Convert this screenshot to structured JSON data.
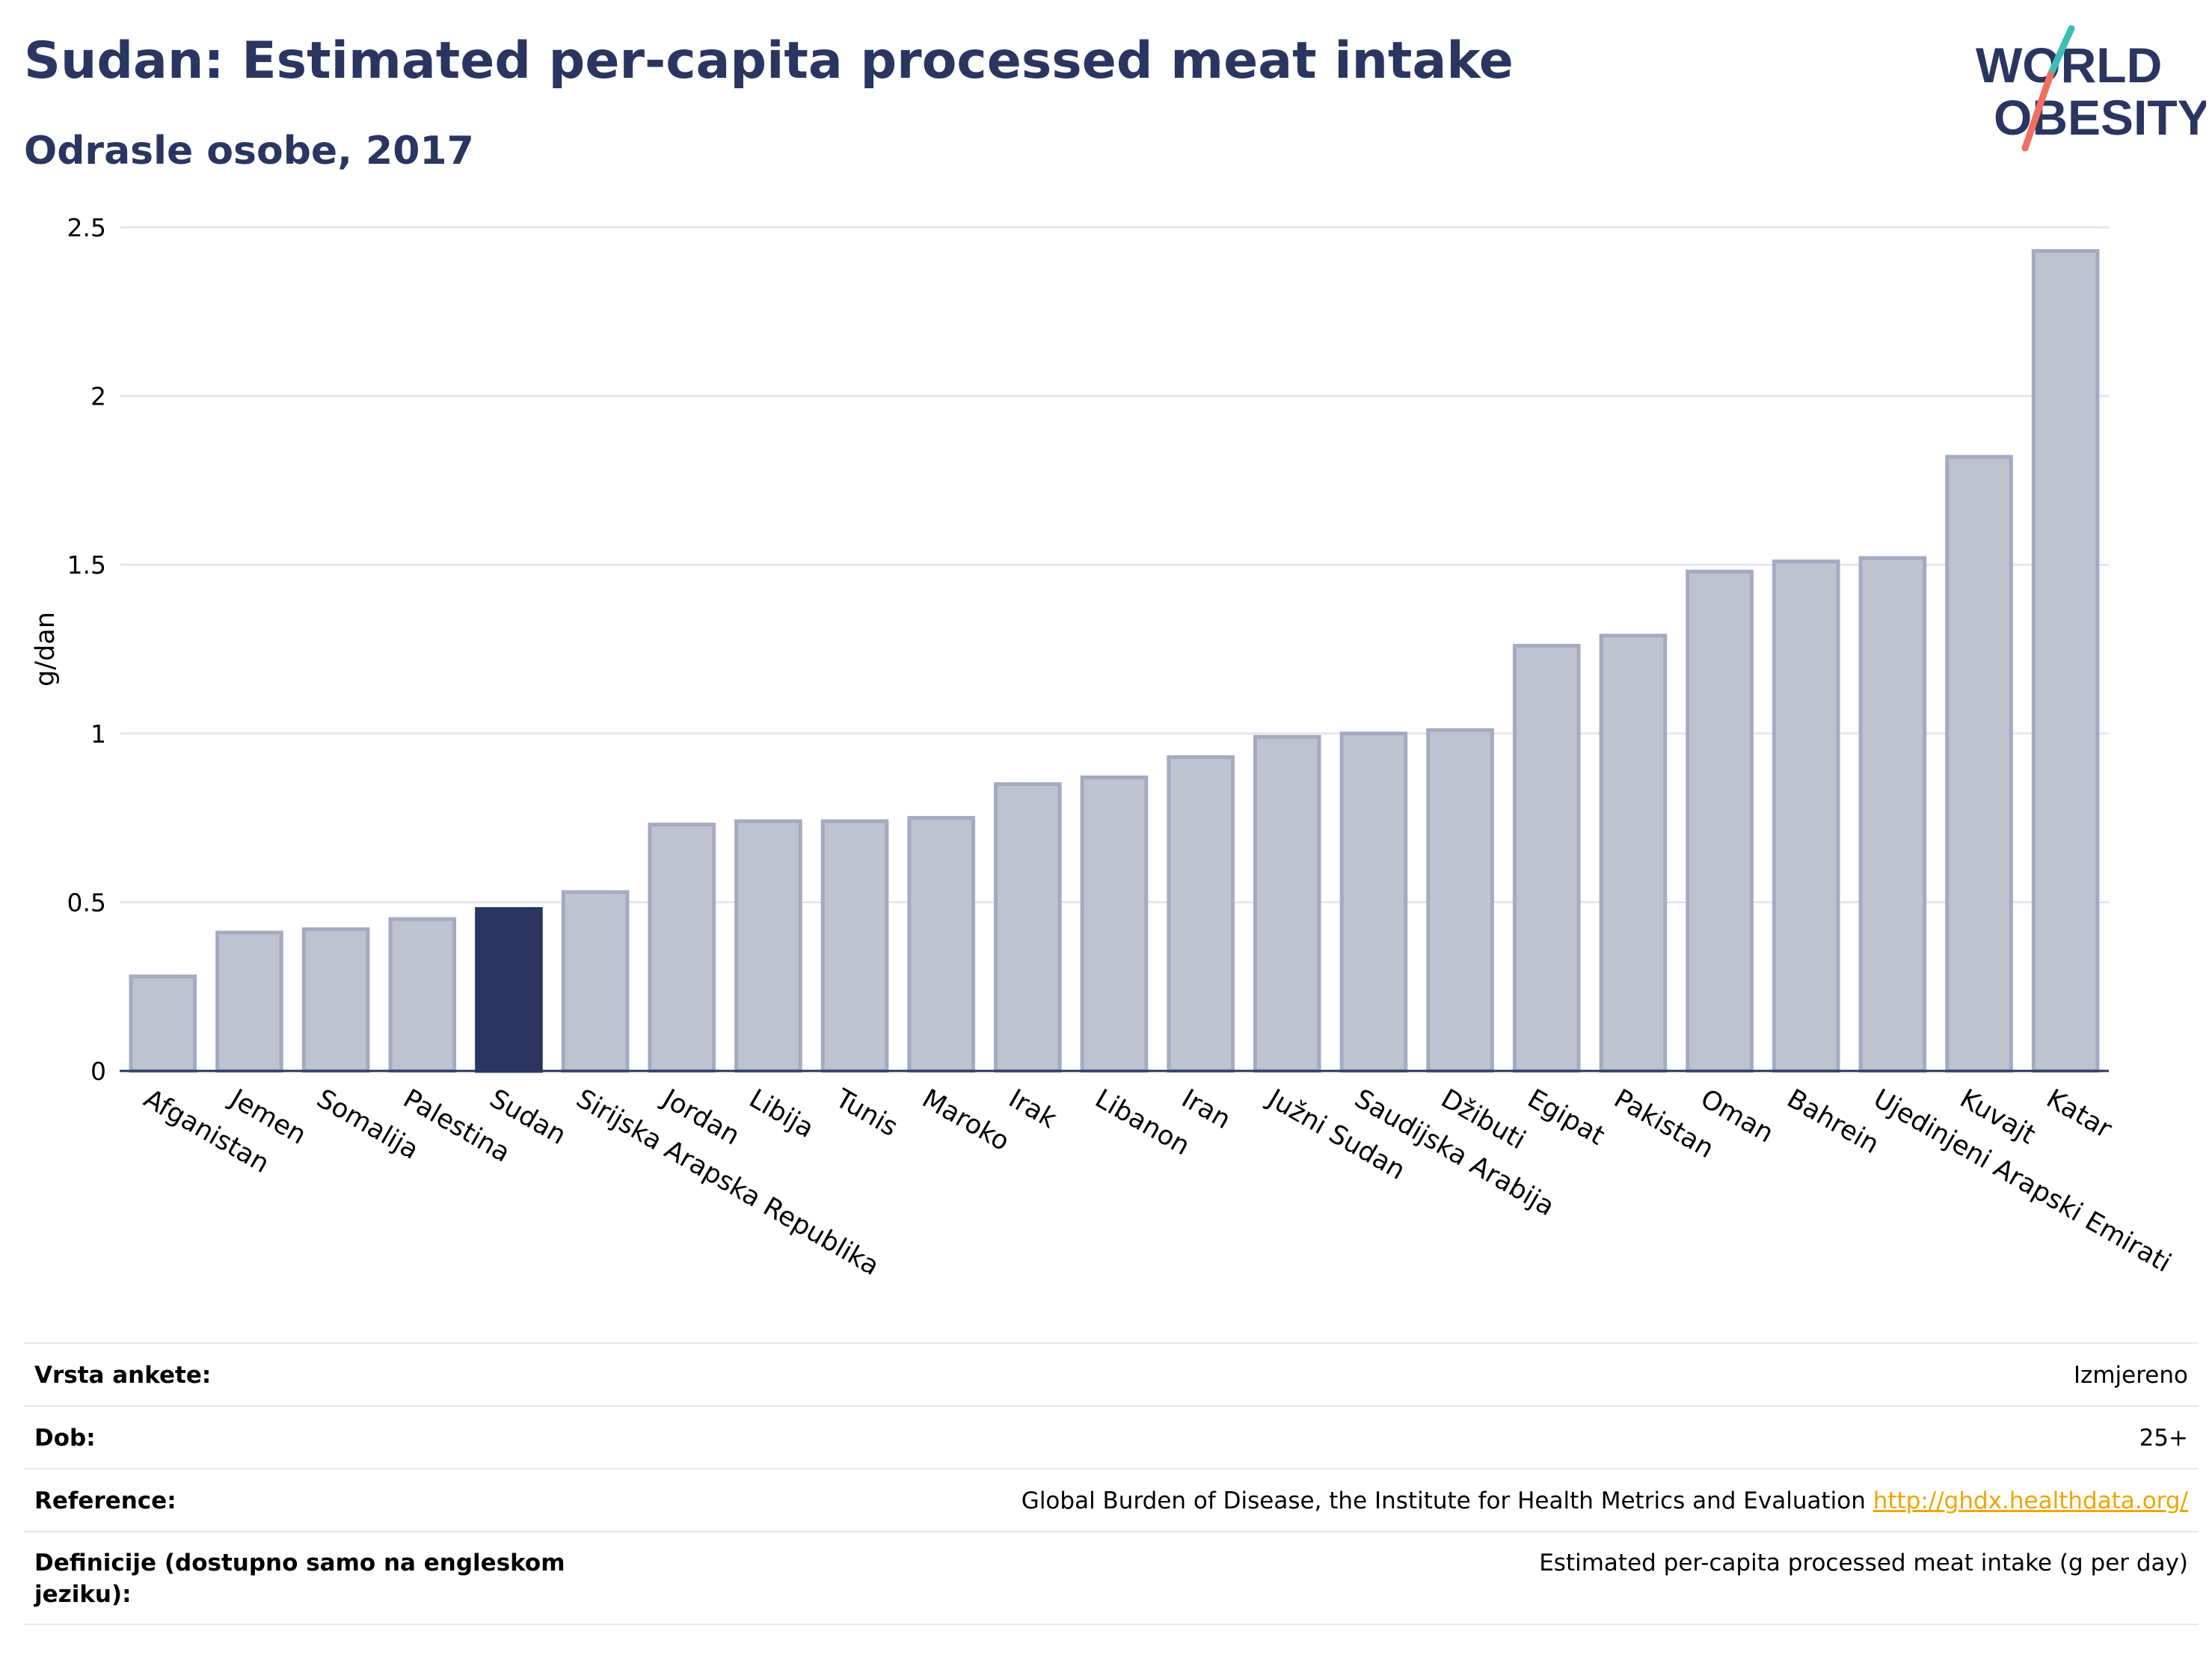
{
  "header": {
    "title": "Sudan: Estimated per-capita processed meat intake",
    "subtitle": "Odrasle osobe, 2017"
  },
  "logo": {
    "line1": "WORLD",
    "line2": "OBESITY"
  },
  "chart_data": {
    "type": "bar",
    "ylabel": "g/dan",
    "ylim": [
      0,
      2.5
    ],
    "yticks": [
      0,
      0.5,
      1,
      1.5,
      2,
      2.5
    ],
    "ytick_labels": [
      "0",
      "0.5",
      "1",
      "1.5",
      "2",
      "2.5"
    ],
    "highlight": "Sudan",
    "categories": [
      "Afganistan",
      "Jemen",
      "Somalija",
      "Palestina",
      "Sudan",
      "Sirijska Arapska Republika",
      "Jordan",
      "Libija",
      "Tunis",
      "Maroko",
      "Irak",
      "Libanon",
      "Iran",
      "Južni Sudan",
      "Saudijska Arabija",
      "Džibuti",
      "Egipat",
      "Pakistan",
      "Oman",
      "Bahrein",
      "Ujedinjeni Arapski Emirati",
      "Kuvajt",
      "Katar"
    ],
    "values": [
      0.28,
      0.41,
      0.42,
      0.45,
      0.48,
      0.53,
      0.73,
      0.74,
      0.74,
      0.75,
      0.85,
      0.87,
      0.93,
      0.99,
      1.0,
      1.01,
      1.26,
      1.29,
      1.48,
      1.51,
      1.52,
      1.82,
      2.43
    ],
    "colors": {
      "bar": "#bfc3d0",
      "bar_border": "#a4aac0",
      "highlight": "#2a3560",
      "grid": "#e6e6ee",
      "axis": "#2a3560"
    }
  },
  "info": {
    "rows": [
      {
        "label": "Vrsta ankete:",
        "value": "Izmjereno"
      },
      {
        "label": "Dob:",
        "value": "25+"
      },
      {
        "label": "Reference:",
        "value": "Global Burden of Disease, the Institute for Health Metrics and Evaluation",
        "link": "http://ghdx.healthdata.org/"
      },
      {
        "label": "Definicije (dostupno samo na engleskom jeziku):",
        "value": "Estimated per-capita processed meat intake (g per day)"
      }
    ]
  }
}
